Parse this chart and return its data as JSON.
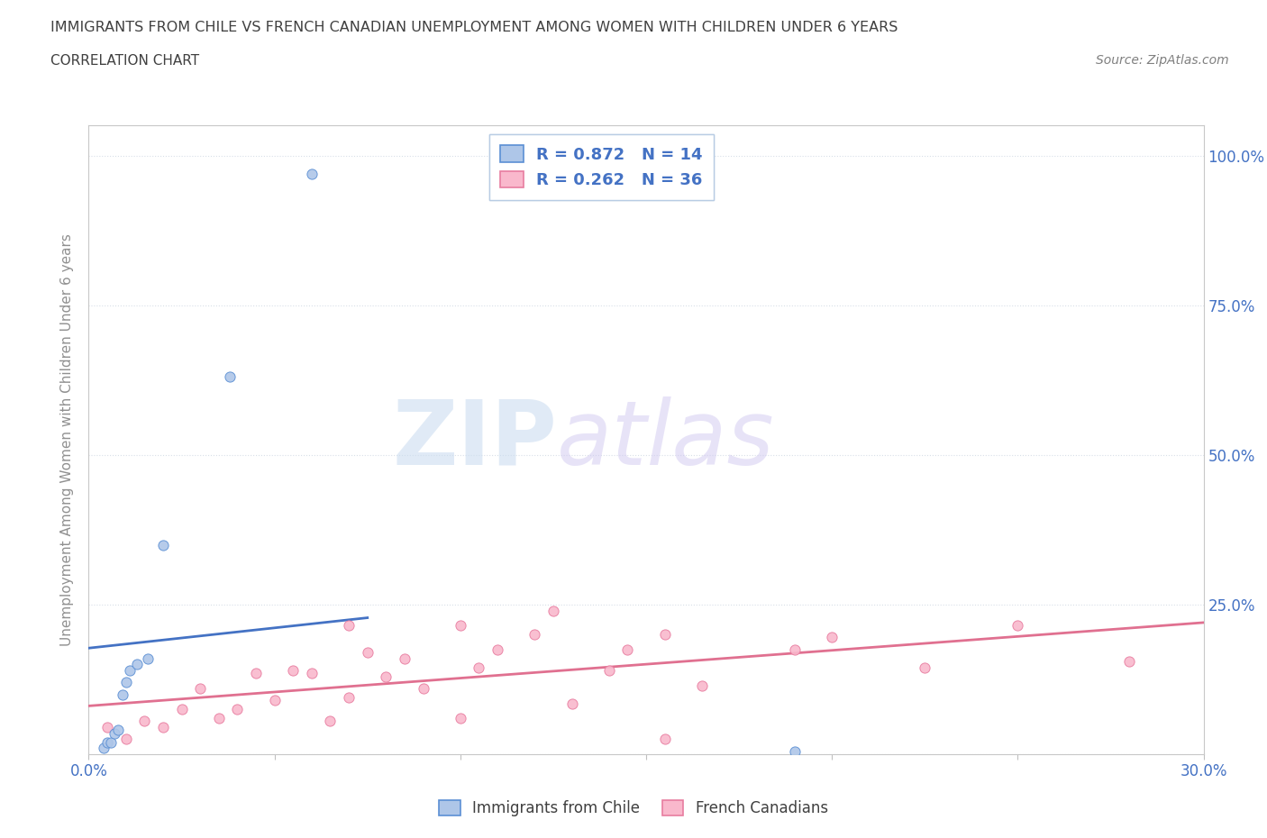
{
  "title": "IMMIGRANTS FROM CHILE VS FRENCH CANADIAN UNEMPLOYMENT AMONG WOMEN WITH CHILDREN UNDER 6 YEARS",
  "subtitle": "CORRELATION CHART",
  "source": "Source: ZipAtlas.com",
  "ylabel": "Unemployment Among Women with Children Under 6 years",
  "xlim": [
    0.0,
    0.3
  ],
  "ylim": [
    0.0,
    1.05
  ],
  "x_ticks": [
    0.0,
    0.05,
    0.1,
    0.15,
    0.2,
    0.25,
    0.3
  ],
  "y_ticks": [
    0.0,
    0.25,
    0.5,
    0.75,
    1.0
  ],
  "chile_color": "#aec6e8",
  "chile_edge_color": "#5b8fd4",
  "chile_line_color": "#4472c4",
  "french_color": "#f9b8cc",
  "french_edge_color": "#e87da0",
  "french_line_color": "#e07090",
  "legend_blue_color": "#4472c4",
  "r_chile": 0.872,
  "n_chile": 14,
  "r_french": 0.262,
  "n_french": 36,
  "label_chile": "Immigrants from Chile",
  "label_french": "French Canadians",
  "watermark_zip": "ZIP",
  "watermark_atlas": "atlas",
  "chile_x": [
    0.004,
    0.005,
    0.006,
    0.007,
    0.008,
    0.009,
    0.01,
    0.011,
    0.013,
    0.016,
    0.02,
    0.038,
    0.06,
    0.19
  ],
  "chile_y": [
    0.01,
    0.02,
    0.02,
    0.035,
    0.04,
    0.1,
    0.12,
    0.14,
    0.15,
    0.16,
    0.35,
    0.63,
    0.97,
    0.005
  ],
  "french_x": [
    0.005,
    0.01,
    0.015,
    0.02,
    0.025,
    0.03,
    0.035,
    0.04,
    0.045,
    0.05,
    0.055,
    0.06,
    0.065,
    0.07,
    0.075,
    0.08,
    0.085,
    0.09,
    0.1,
    0.105,
    0.11,
    0.12,
    0.125,
    0.13,
    0.14,
    0.145,
    0.155,
    0.165,
    0.19,
    0.2,
    0.225,
    0.25,
    0.28,
    0.1,
    0.155,
    0.07
  ],
  "french_y": [
    0.045,
    0.025,
    0.055,
    0.045,
    0.075,
    0.11,
    0.06,
    0.075,
    0.135,
    0.09,
    0.14,
    0.135,
    0.055,
    0.095,
    0.17,
    0.13,
    0.16,
    0.11,
    0.215,
    0.145,
    0.175,
    0.2,
    0.24,
    0.085,
    0.14,
    0.175,
    0.2,
    0.115,
    0.175,
    0.195,
    0.145,
    0.215,
    0.155,
    0.06,
    0.025,
    0.215
  ],
  "background_color": "#ffffff",
  "grid_color": "#d8dfe8",
  "title_color": "#404040",
  "axis_label_color": "#909090",
  "tick_label_color": "#4472c4"
}
